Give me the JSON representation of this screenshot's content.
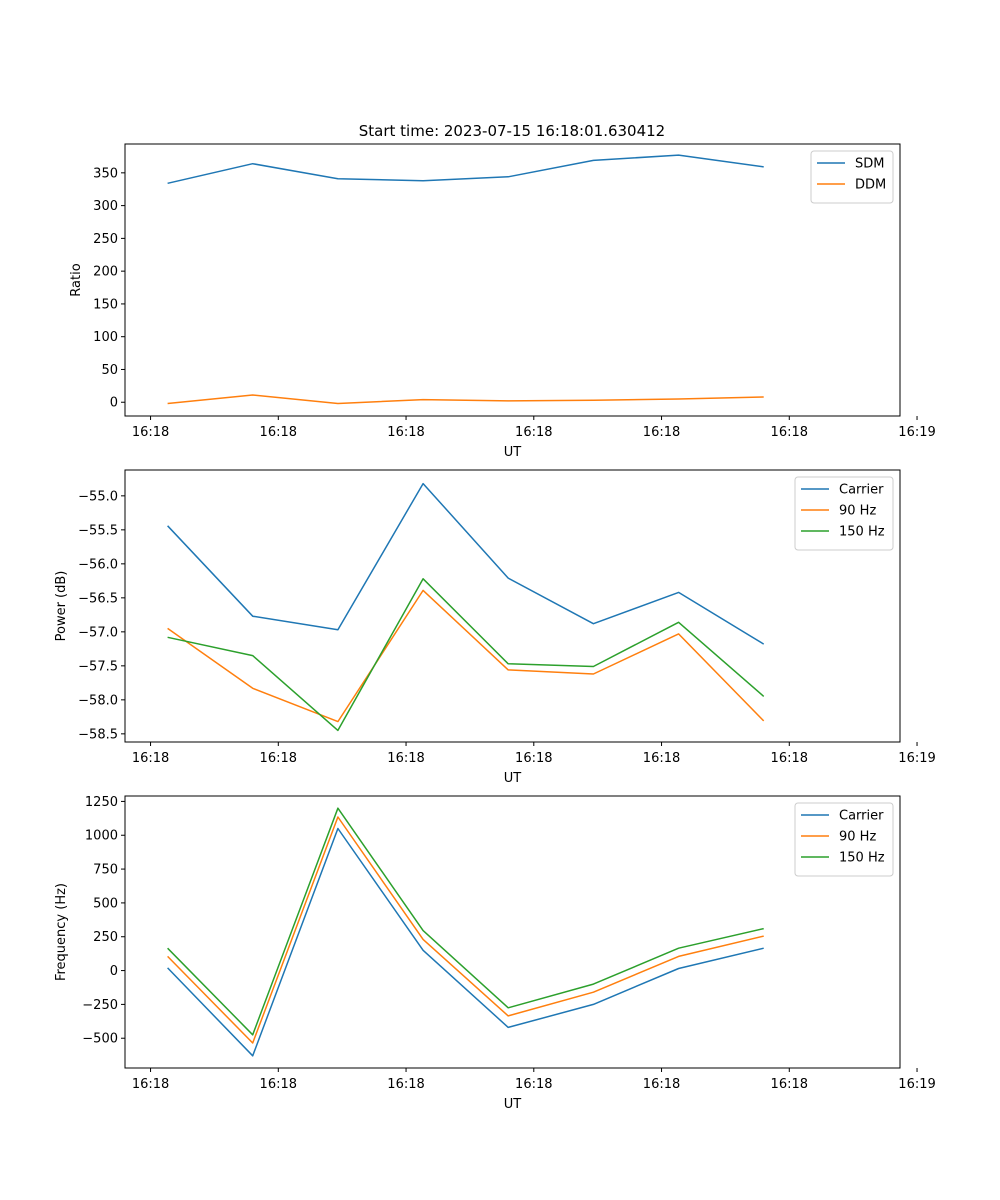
{
  "figure_title": "Start time: 2023-07-15 16:18:01.630412",
  "colors": {
    "blue": "#1f77b4",
    "orange": "#ff7f0e",
    "green": "#2ca02c",
    "axis": "#000000",
    "legend_border": "#cccccc"
  },
  "chart_data": [
    {
      "type": "line",
      "title": "Start time: 2023-07-15 16:18:01.630412",
      "xlabel": "UT",
      "ylabel": "Ratio",
      "xlim": [
        -0.5,
        8.6
      ],
      "ylim": [
        -21,
        394
      ],
      "x": [
        0,
        1,
        2,
        3,
        4,
        5,
        6,
        7
      ],
      "xtick_positions": [
        -0.2,
        1.3,
        2.8,
        4.3,
        5.8,
        7.3,
        8.8
      ],
      "xtick_labels": [
        "16:18",
        "16:18",
        "16:18",
        "16:18",
        "16:18",
        "16:18",
        "16:19"
      ],
      "ytick_values": [
        0,
        50,
        100,
        150,
        200,
        250,
        300,
        350
      ],
      "ytick_labels": [
        "0",
        "50",
        "100",
        "150",
        "200",
        "250",
        "300",
        "350"
      ],
      "legend_position": "top-right",
      "series": [
        {
          "name": "SDM",
          "color": "#1f77b4",
          "values": [
            334,
            364,
            341,
            338,
            344,
            369,
            377,
            359
          ]
        },
        {
          "name": "DDM",
          "color": "#ff7f0e",
          "values": [
            -2,
            11,
            -2,
            4,
            2,
            3,
            5,
            8
          ]
        }
      ]
    },
    {
      "type": "line",
      "title": "",
      "xlabel": "UT",
      "ylabel": "Power (dB)",
      "xlim": [
        -0.5,
        8.6
      ],
      "ylim": [
        -58.62,
        -54.62
      ],
      "x": [
        0,
        1,
        2,
        3,
        4,
        5,
        6,
        7
      ],
      "xtick_positions": [
        -0.2,
        1.3,
        2.8,
        4.3,
        5.8,
        7.3,
        8.8
      ],
      "xtick_labels": [
        "16:18",
        "16:18",
        "16:18",
        "16:18",
        "16:18",
        "16:18",
        "16:19"
      ],
      "ytick_values": [
        -55.0,
        -55.5,
        -56.0,
        -56.5,
        -57.0,
        -57.5,
        -58.0,
        -58.5
      ],
      "ytick_labels": [
        "−55.0",
        "−55.5",
        "−56.0",
        "−56.5",
        "−57.0",
        "−57.5",
        "−58.0",
        "−58.5"
      ],
      "legend_position": "top-right",
      "series": [
        {
          "name": "Carrier",
          "color": "#1f77b4",
          "values": [
            -55.44,
            -56.77,
            -56.97,
            -54.82,
            -56.21,
            -56.88,
            -56.42,
            -57.18
          ]
        },
        {
          "name": "90 Hz",
          "color": "#ff7f0e",
          "values": [
            -56.95,
            -57.83,
            -58.32,
            -56.39,
            -57.56,
            -57.62,
            -57.03,
            -58.31
          ]
        },
        {
          "name": "150 Hz",
          "color": "#2ca02c",
          "values": [
            -57.08,
            -57.35,
            -58.45,
            -56.22,
            -57.47,
            -57.51,
            -56.86,
            -57.95
          ]
        }
      ]
    },
    {
      "type": "line",
      "title": "",
      "xlabel": "UT",
      "ylabel": "Frequency (Hz)",
      "xlim": [
        -0.5,
        8.6
      ],
      "ylim": [
        -720,
        1290
      ],
      "x": [
        0,
        1,
        2,
        3,
        4,
        5,
        6,
        7
      ],
      "xtick_positions": [
        -0.2,
        1.3,
        2.8,
        4.3,
        5.8,
        7.3,
        8.8
      ],
      "xtick_labels": [
        "16:18",
        "16:18",
        "16:18",
        "16:18",
        "16:18",
        "16:18",
        "16:19"
      ],
      "ytick_values": [
        -500,
        -250,
        0,
        250,
        500,
        750,
        1000,
        1250
      ],
      "ytick_labels": [
        "−500",
        "−250",
        "0",
        "250",
        "500",
        "750",
        "1000",
        "1250"
      ],
      "legend_position": "top-right",
      "series": [
        {
          "name": "Carrier",
          "color": "#1f77b4",
          "values": [
            20,
            -630,
            1050,
            150,
            -420,
            -250,
            15,
            165
          ]
        },
        {
          "name": "90 Hz",
          "color": "#ff7f0e",
          "values": [
            105,
            -535,
            1135,
            230,
            -335,
            -160,
            105,
            255
          ]
        },
        {
          "name": "150 Hz",
          "color": "#2ca02c",
          "values": [
            165,
            -475,
            1200,
            295,
            -275,
            -100,
            165,
            310
          ]
        }
      ]
    }
  ]
}
